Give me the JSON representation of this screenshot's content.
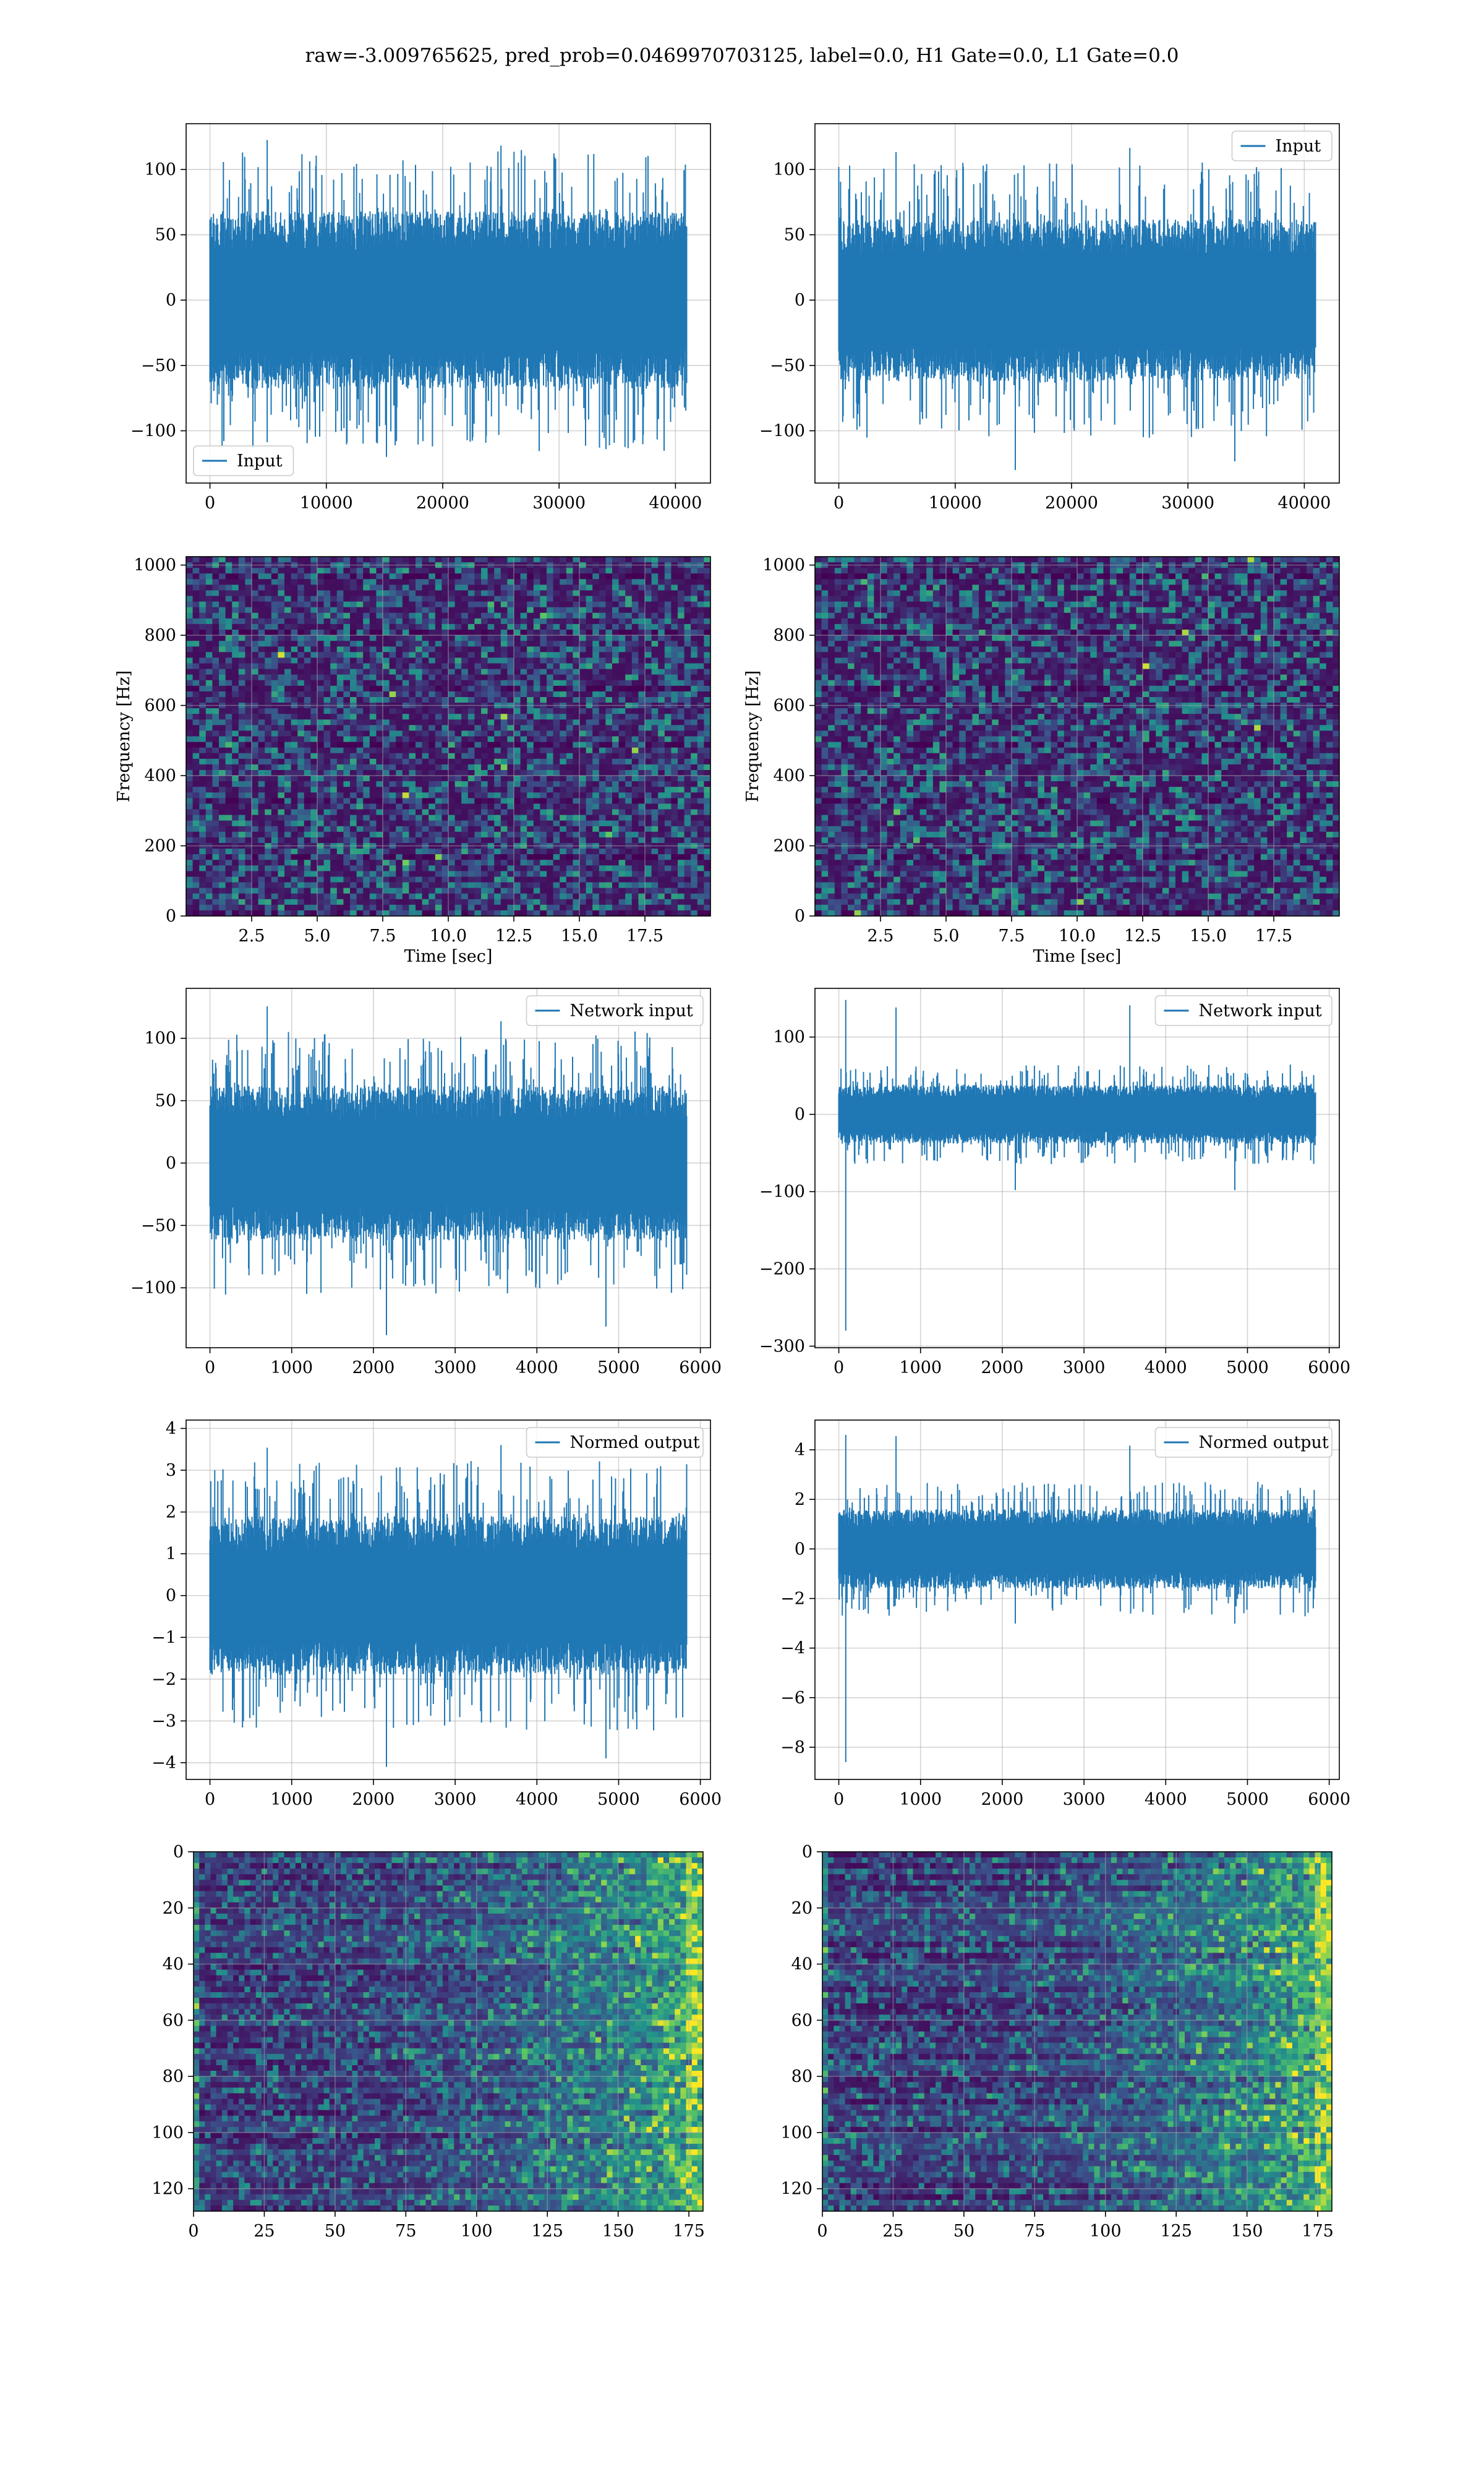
{
  "figure": {
    "suptitle": "raw=-3.009765625, pred_prob=0.0469970703125, label=0.0, H1 Gate=0.0, L1 Gate=0.0"
  },
  "colors": {
    "line": "#1f77b4",
    "grid": "#b0b0b0",
    "viridis": [
      "#440154",
      "#3b528b",
      "#21918c",
      "#5ec962",
      "#fde725"
    ]
  },
  "chart_data": [
    {
      "id": "input-h1",
      "type": "line",
      "x_range": [
        0,
        40960
      ],
      "ylim": [
        -140,
        135
      ],
      "x_ticks": [
        0,
        10000,
        20000,
        30000,
        40000
      ],
      "y_ticks": [
        -100,
        -50,
        0,
        50,
        100
      ],
      "x_tick_labels": [
        "0",
        "10000",
        "20000",
        "30000",
        "40000"
      ],
      "y_tick_labels": [
        "−100",
        "−50",
        "0",
        "50",
        "100"
      ],
      "series": [
        {
          "name": "Input",
          "center": 0,
          "band": 68,
          "peak_high": 126,
          "peak_low": -120
        }
      ],
      "legend": "lower left",
      "grid": true
    },
    {
      "id": "input-l1",
      "type": "line",
      "x_range": [
        0,
        40960
      ],
      "ylim": [
        -140,
        135
      ],
      "x_ticks": [
        0,
        10000,
        20000,
        30000,
        40000
      ],
      "y_ticks": [
        -100,
        -50,
        0,
        50,
        100
      ],
      "x_tick_labels": [
        "0",
        "10000",
        "20000",
        "30000",
        "40000"
      ],
      "y_tick_labels": [
        "−100",
        "−50",
        "0",
        "50",
        "100"
      ],
      "series": [
        {
          "name": "Input",
          "center": 0,
          "band": 62,
          "peak_high": 123,
          "peak_low": -130
        }
      ],
      "legend": "upper right",
      "grid": true
    },
    {
      "id": "spectrogram-h1",
      "type": "heatmap",
      "xlim": [
        0,
        20
      ],
      "ylim": [
        0,
        1024
      ],
      "x_ticks": [
        2.5,
        5,
        7.5,
        10,
        12.5,
        15,
        17.5
      ],
      "y_ticks": [
        0,
        200,
        400,
        600,
        800,
        1000
      ],
      "x_tick_labels": [
        "2.5",
        "5.0",
        "7.5",
        "10.0",
        "12.5",
        "15.0",
        "17.5"
      ],
      "y_tick_labels": [
        "0",
        "200",
        "400",
        "600",
        "800",
        "1000"
      ],
      "xlabel": "Time [sec]",
      "ylabel": "Frequency [Hz]",
      "grid": true
    },
    {
      "id": "spectrogram-l1",
      "type": "heatmap",
      "xlim": [
        0,
        20
      ],
      "ylim": [
        0,
        1024
      ],
      "x_ticks": [
        2.5,
        5,
        7.5,
        10,
        12.5,
        15,
        17.5
      ],
      "y_ticks": [
        0,
        200,
        400,
        600,
        800,
        1000
      ],
      "x_tick_labels": [
        "2.5",
        "5.0",
        "7.5",
        "10.0",
        "12.5",
        "15.0",
        "17.5"
      ],
      "y_tick_labels": [
        "0",
        "200",
        "400",
        "600",
        "800",
        "1000"
      ],
      "xlabel": "Time [sec]",
      "ylabel": "Frequency [Hz]",
      "grid": true
    },
    {
      "id": "network-input-h1",
      "type": "line",
      "x_range": [
        0,
        5832
      ],
      "ylim": [
        -148,
        140
      ],
      "x_ticks": [
        0,
        1000,
        2000,
        3000,
        4000,
        5000,
        6000
      ],
      "y_ticks": [
        -100,
        -50,
        0,
        50,
        100
      ],
      "x_tick_labels": [
        "0",
        "1000",
        "2000",
        "3000",
        "4000",
        "5000",
        "6000"
      ],
      "y_tick_labels": [
        "−100",
        "−50",
        "0",
        "50",
        "100"
      ],
      "series": [
        {
          "name": "Network input",
          "center": 0,
          "band": 62,
          "peak_high": 126,
          "peak_low": -138
        }
      ],
      "legend": "upper right",
      "grid": true
    },
    {
      "id": "network-input-l1",
      "type": "line",
      "x_range": [
        0,
        5832
      ],
      "ylim": [
        -302,
        163
      ],
      "x_ticks": [
        0,
        1000,
        2000,
        3000,
        4000,
        5000,
        6000
      ],
      "y_ticks": [
        -300,
        -200,
        -100,
        0,
        100
      ],
      "x_tick_labels": [
        "0",
        "1000",
        "2000",
        "3000",
        "4000",
        "5000",
        "6000"
      ],
      "y_tick_labels": [
        "−300",
        "−200",
        "−100",
        "0",
        "100"
      ],
      "series": [
        {
          "name": "Network input",
          "center": 0,
          "band": 38,
          "peak_high": 148,
          "peak_low": -280
        }
      ],
      "legend": "upper right",
      "grid": true
    },
    {
      "id": "normed-output-h1",
      "type": "line",
      "x_range": [
        0,
        5832
      ],
      "ylim": [
        -4.4,
        4.2
      ],
      "x_ticks": [
        0,
        1000,
        2000,
        3000,
        4000,
        5000,
        6000
      ],
      "y_ticks": [
        -4,
        -3,
        -2,
        -1,
        0,
        1,
        2,
        3,
        4
      ],
      "x_tick_labels": [
        "0",
        "1000",
        "2000",
        "3000",
        "4000",
        "5000",
        "6000"
      ],
      "y_tick_labels": [
        "−4",
        "−3",
        "−2",
        "−1",
        "0",
        "1",
        "2",
        "3",
        "4"
      ],
      "series": [
        {
          "name": "Normed output",
          "center": 0,
          "band": 1.9,
          "peak_high": 3.9,
          "peak_low": -4.1
        }
      ],
      "legend": "upper right",
      "grid": true
    },
    {
      "id": "normed-output-l1",
      "type": "line",
      "x_range": [
        0,
        5832
      ],
      "ylim": [
        -9.3,
        5.2
      ],
      "x_ticks": [
        0,
        1000,
        2000,
        3000,
        4000,
        5000,
        6000
      ],
      "y_ticks": [
        -8,
        -6,
        -4,
        -2,
        0,
        2,
        4
      ],
      "x_tick_labels": [
        "0",
        "1000",
        "2000",
        "3000",
        "4000",
        "5000",
        "6000"
      ],
      "y_tick_labels": [
        "−8",
        "−6",
        "−4",
        "−2",
        "0",
        "2",
        "4"
      ],
      "series": [
        {
          "name": "Normed output",
          "center": 0,
          "band": 1.6,
          "peak_high": 4.6,
          "peak_low": -8.6
        }
      ],
      "legend": "upper right",
      "grid": true
    },
    {
      "id": "feature-map-h1",
      "type": "heatmap",
      "xlim": [
        0,
        180
      ],
      "ylim": [
        128,
        0
      ],
      "x_ticks": [
        0,
        25,
        50,
        75,
        100,
        125,
        150,
        175
      ],
      "y_ticks": [
        0,
        20,
        40,
        60,
        80,
        100,
        120
      ],
      "x_tick_labels": [
        "0",
        "25",
        "50",
        "75",
        "100",
        "125",
        "150",
        "175"
      ],
      "y_tick_labels": [
        "0",
        "20",
        "40",
        "60",
        "80",
        "100",
        "120"
      ],
      "grid": true
    },
    {
      "id": "feature-map-l1",
      "type": "heatmap",
      "xlim": [
        0,
        180
      ],
      "ylim": [
        128,
        0
      ],
      "x_ticks": [
        0,
        25,
        50,
        75,
        100,
        125,
        150,
        175
      ],
      "y_ticks": [
        0,
        20,
        40,
        60,
        80,
        100,
        120
      ],
      "x_tick_labels": [
        "0",
        "25",
        "50",
        "75",
        "100",
        "125",
        "150",
        "175"
      ],
      "y_tick_labels": [
        "0",
        "20",
        "40",
        "60",
        "80",
        "100",
        "120"
      ],
      "grid": true
    }
  ]
}
